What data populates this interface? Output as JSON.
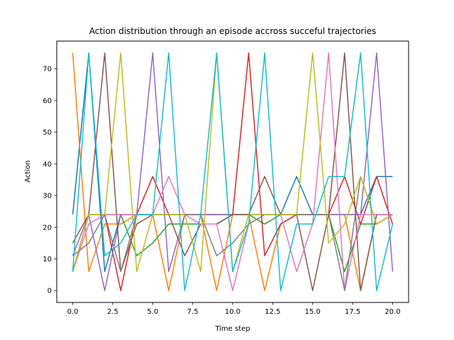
{
  "chart_data": {
    "type": "line",
    "title": "Action distribution through an episode accross succeful trajectories",
    "xlabel": "Time step",
    "ylabel": "Action",
    "xlim": [
      -1.0,
      21.0
    ],
    "ylim": [
      -3.75,
      78.75
    ],
    "grid": false,
    "x_ticks": [
      0.0,
      2.5,
      5.0,
      7.5,
      10.0,
      12.5,
      15.0,
      17.5,
      20.0
    ],
    "x_tick_labels": [
      "0.0",
      "2.5",
      "5.0",
      "7.5",
      "10.0",
      "12.5",
      "15.0",
      "17.5",
      "20.0"
    ],
    "y_ticks": [
      0,
      10,
      20,
      30,
      40,
      50,
      60,
      70
    ],
    "y_tick_labels": [
      "0",
      "10",
      "20",
      "30",
      "40",
      "50",
      "60",
      "70"
    ],
    "x": [
      0,
      1,
      2,
      3,
      4,
      5,
      6,
      7,
      8,
      9,
      10,
      11,
      12,
      13,
      14,
      15,
      16,
      17,
      18,
      19,
      20
    ],
    "series": [
      {
        "color": "#1f77b4",
        "values": [
          24,
          75,
          6,
          24,
          24,
          24,
          24,
          24,
          24,
          24,
          24,
          24,
          24,
          24,
          36,
          24,
          24,
          24,
          24,
          36,
          36
        ]
      },
      {
        "color": "#ff7f0e",
        "values": [
          75,
          6,
          21,
          21,
          24,
          24,
          0,
          24,
          24,
          0,
          24,
          24,
          0,
          21,
          24,
          24,
          24,
          24,
          0,
          24,
          24
        ]
      },
      {
        "color": "#2ca02c",
        "values": [
          6,
          24,
          24,
          24,
          11,
          15,
          21,
          21,
          21,
          21,
          24,
          24,
          21,
          24,
          24,
          24,
          24,
          6,
          21,
          21,
          24
        ]
      },
      {
        "color": "#d62728",
        "values": [
          6,
          24,
          24,
          0,
          24,
          36,
          24,
          24,
          24,
          24,
          24,
          75,
          11,
          21,
          24,
          24,
          24,
          36,
          21,
          36,
          21
        ]
      },
      {
        "color": "#9467bd",
        "values": [
          11,
          24,
          0,
          24,
          24,
          75,
          6,
          24,
          24,
          24,
          24,
          24,
          24,
          24,
          24,
          24,
          24,
          24,
          24,
          75,
          6
        ]
      },
      {
        "color": "#8c564b",
        "values": [
          15,
          24,
          75,
          6,
          21,
          24,
          24,
          11,
          21,
          21,
          24,
          24,
          36,
          24,
          24,
          0,
          24,
          75,
          0,
          24,
          24
        ]
      },
      {
        "color": "#e377c2",
        "values": [
          6,
          21,
          24,
          24,
          24,
          24,
          36,
          24,
          21,
          21,
          0,
          21,
          24,
          24,
          6,
          21,
          75,
          0,
          24,
          24,
          24
        ]
      },
      {
        "color": "#7f7f7f",
        "values": [
          11,
          15,
          24,
          6,
          24,
          24,
          24,
          24,
          24,
          11,
          15,
          21,
          24,
          24,
          24,
          24,
          24,
          0,
          36,
          21,
          24
        ]
      },
      {
        "color": "#bcbd22",
        "values": [
          6,
          24,
          24,
          75,
          6,
          24,
          24,
          24,
          6,
          75,
          6,
          24,
          24,
          24,
          24,
          75,
          15,
          21,
          36,
          21,
          24
        ]
      },
      {
        "color": "#17becf",
        "values": [
          6,
          75,
          11,
          15,
          24,
          24,
          75,
          0,
          24,
          75,
          6,
          21,
          75,
          0,
          21,
          21,
          36,
          36,
          75,
          0,
          21
        ]
      }
    ]
  }
}
